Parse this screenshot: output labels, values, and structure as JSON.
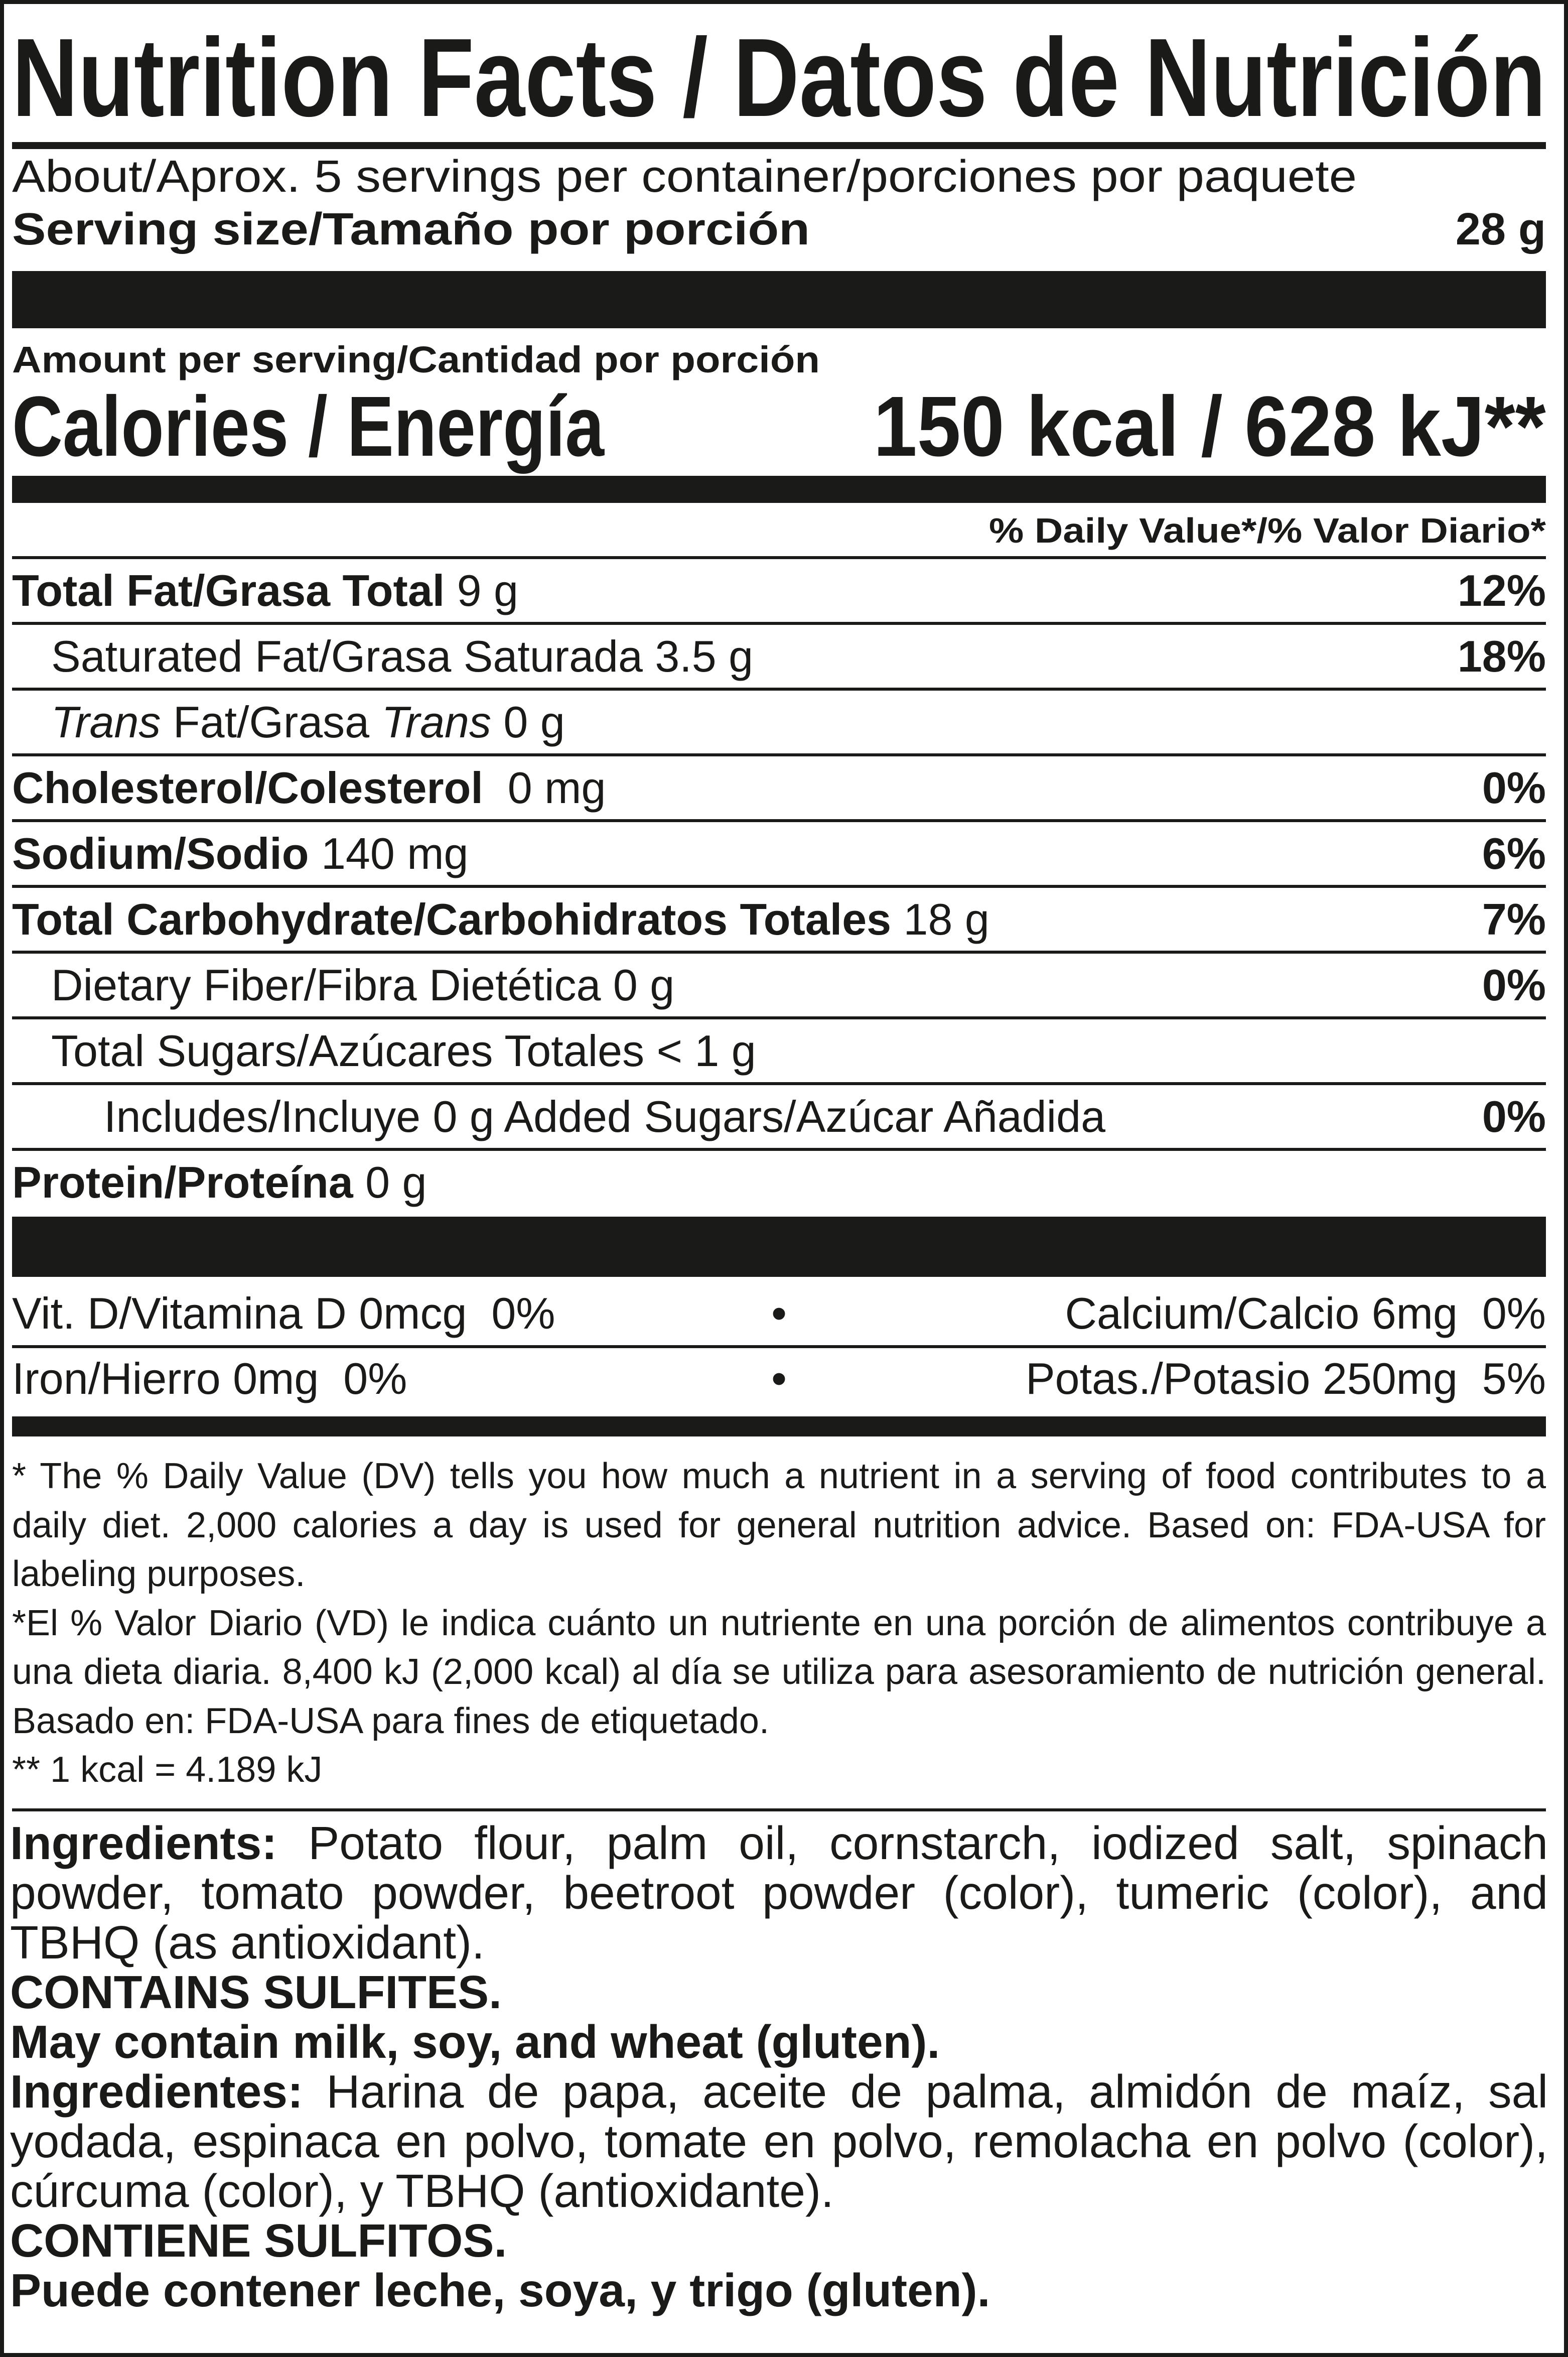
{
  "header": {
    "title": "Nutrition Facts / Datos de Nutrición",
    "servings": "About/Aprox. 5 servings per container/porciones por paquete",
    "serving_size_label": "Serving size/Tamaño por porción",
    "serving_size_value": "28 g",
    "amount_per_serving": "Amount per serving/Cantidad por porción",
    "calories_label": "Calories / Energía",
    "calories_value": "150 kcal / 628 kJ**",
    "dv_header": "% Daily Value*/% Valor Diario*"
  },
  "nutrients": [
    {
      "indent": 0,
      "segments": [
        {
          "t": "Total Fat/Grasa Total",
          "s": "b"
        },
        {
          "t": " 9 g",
          "s": "n"
        }
      ],
      "dv": "12%"
    },
    {
      "indent": 1,
      "segments": [
        {
          "t": "Saturated Fat/Grasa Saturada 3.5 g",
          "s": "n"
        }
      ],
      "dv": "18%"
    },
    {
      "indent": 1,
      "segments": [
        {
          "t": "Trans",
          "s": "i"
        },
        {
          "t": " Fat/Grasa ",
          "s": "n"
        },
        {
          "t": "Trans",
          "s": "i"
        },
        {
          "t": " 0 g",
          "s": "n"
        }
      ],
      "dv": ""
    },
    {
      "indent": 0,
      "segments": [
        {
          "t": "Cholesterol/Colesterol",
          "s": "b"
        },
        {
          "t": "  0 mg",
          "s": "n"
        }
      ],
      "dv": "0%"
    },
    {
      "indent": 0,
      "segments": [
        {
          "t": "Sodium/Sodio",
          "s": "b"
        },
        {
          "t": " 140 mg",
          "s": "n"
        }
      ],
      "dv": "6%"
    },
    {
      "indent": 0,
      "segments": [
        {
          "t": "Total Carbohydrate/Carbohidratos Totales",
          "s": "b"
        },
        {
          "t": " 18 g",
          "s": "n"
        }
      ],
      "dv": "7%"
    },
    {
      "indent": 1,
      "segments": [
        {
          "t": "Dietary Fiber/Fibra Dietética 0 g",
          "s": "n"
        }
      ],
      "dv": "0%"
    },
    {
      "indent": 1,
      "segments": [
        {
          "t": "Total Sugars/Azúcares Totales < 1 g",
          "s": "n"
        }
      ],
      "dv": ""
    },
    {
      "indent": 2,
      "segments": [
        {
          "t": "Includes/Incluye 0 g Added Sugars/Azúcar Añadida",
          "s": "n"
        }
      ],
      "dv": "0%"
    },
    {
      "indent": 0,
      "segments": [
        {
          "t": "Protein/Proteína",
          "s": "b"
        },
        {
          "t": " 0 g",
          "s": "n"
        }
      ],
      "dv": ""
    }
  ],
  "vitamins": [
    {
      "left": "Vit. D/Vitamina D 0mcg  0%",
      "right": "Calcium/Calcio 6mg  0%"
    },
    {
      "left": "Iron/Hierro 0mg  0%",
      "right": "Potas./Potasio 250mg  5%"
    }
  ],
  "bullet": "•",
  "footnotes": [
    "* The % Daily Value (DV) tells you how much a nutrient in a serving of food contributes to a daily diet. 2,000 calories a day is used for general nutrition advice. Based on: FDA-USA for labeling purposes.",
    "*El % Valor Diario (VD) le indica cuánto un nutriente en una porción de alimentos contribuye a una dieta diaria. 8,400 kJ (2,000 kcal) al día se utiliza para asesoramiento de nutrición general.  Basado en:  FDA-USA para fines de etiquetado.",
    "** 1 kcal = 4.189 kJ"
  ],
  "ingredients": {
    "en_label": "Ingredients:",
    "en_text": " Potato flour, palm oil, cornstarch, iodized salt, spinach powder, tomato powder, beetroot powder (color), tumeric (color), and TBHQ (as antioxidant).",
    "en_contains": "CONTAINS SULFITES.",
    "en_may": "May contain milk, soy, and wheat (gluten).",
    "es_label": "Ingredientes:",
    "es_text": " Harina de papa, aceite de palma, almidón de maíz, sal yodada, espinaca en polvo, tomate en polvo, remolacha en polvo (color), cúrcuma (color), y TBHQ (antioxidante).",
    "es_contains": "CONTIENE SULFITOS.",
    "es_may": "Puede contener leche, soya, y trigo (gluten)."
  },
  "colors": {
    "ink": "#1a1a18",
    "background": "#ffffff"
  }
}
